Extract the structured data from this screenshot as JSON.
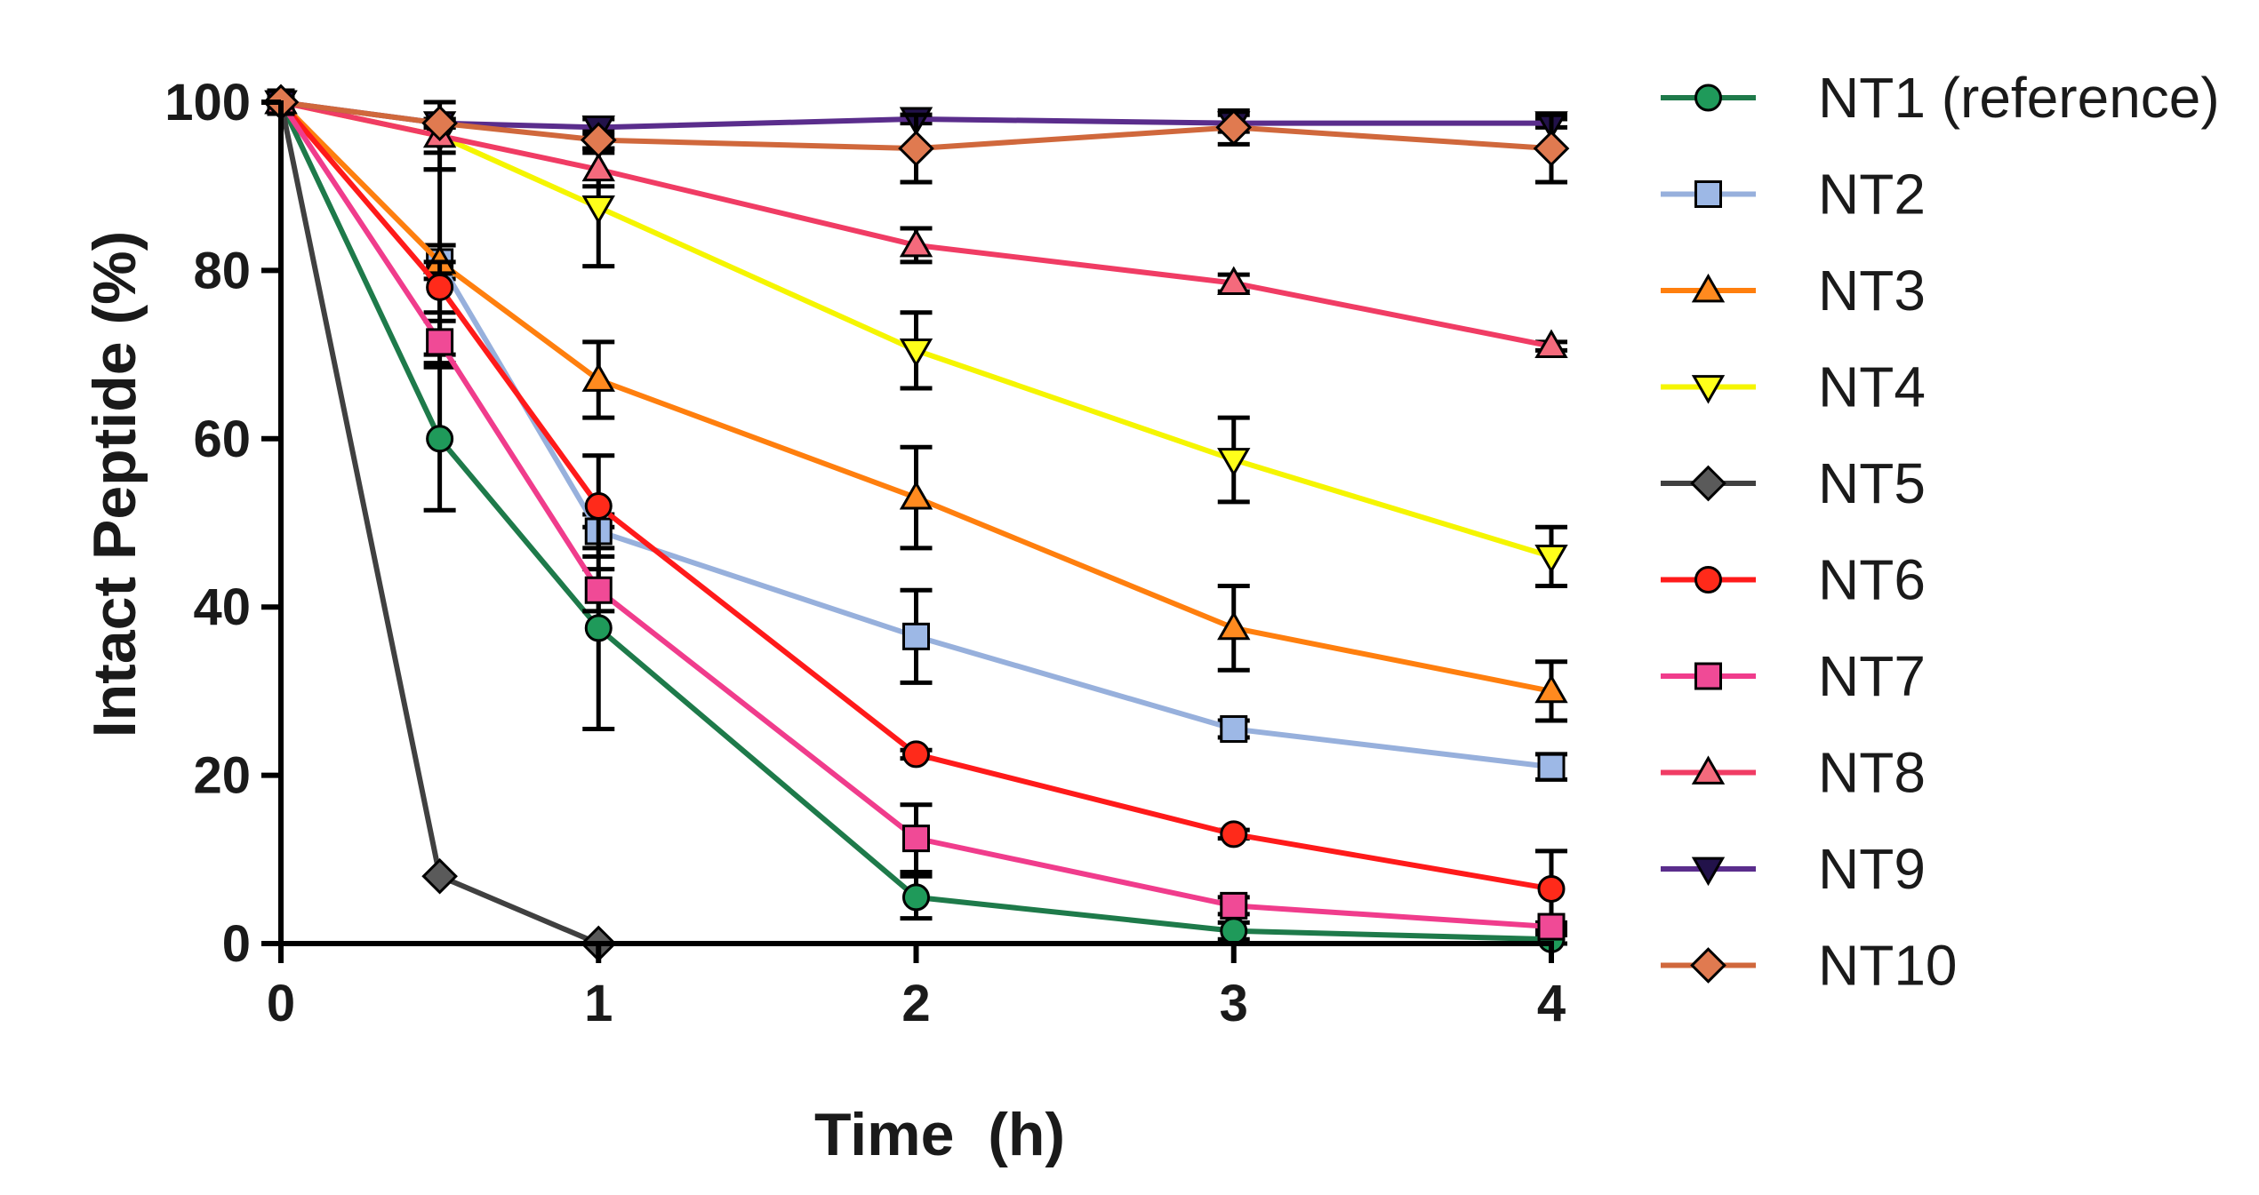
{
  "chart_data": {
    "type": "line",
    "title": "",
    "xlabel": "Time  (h)",
    "ylabel": "Intact Peptide (%)",
    "xlim": [
      0,
      4
    ],
    "ylim": [
      0,
      100
    ],
    "xticks": [
      0,
      1,
      2,
      3,
      4
    ],
    "yticks": [
      0,
      20,
      40,
      60,
      80,
      100
    ],
    "grid": false,
    "legend_position": "right",
    "series": [
      {
        "name": "NT1 (reference)",
        "color": "#1e7a4a",
        "marker": "circle",
        "fill": "#1f9a5a",
        "x": [
          0,
          0.5,
          1,
          2,
          3,
          4
        ],
        "y": [
          100,
          60,
          37.5,
          5.5,
          1.5,
          0.5
        ],
        "err": [
          0,
          8.5,
          12,
          2.5,
          1,
          0.5
        ]
      },
      {
        "name": "NT2",
        "color": "#97b0dc",
        "marker": "square",
        "fill": "#9db8e6",
        "x": [
          0,
          0.5,
          1,
          2,
          3,
          4
        ],
        "y": [
          100,
          81,
          49,
          36.5,
          25.5,
          21
        ],
        "err": [
          0,
          2,
          2,
          5.5,
          1,
          1.5
        ]
      },
      {
        "name": "NT3",
        "color": "#ff7f0e",
        "marker": "triangle-up",
        "fill": "#ff8a1f",
        "x": [
          0,
          0.5,
          1,
          2,
          3,
          4
        ],
        "y": [
          100,
          81,
          67,
          53,
          37.5,
          30
        ],
        "err": [
          0,
          11,
          4.5,
          6,
          5,
          3.5
        ]
      },
      {
        "name": "NT4",
        "color": "#f5f500",
        "marker": "triangle-down",
        "fill": "#ffff1a",
        "x": [
          0,
          0.5,
          1,
          2,
          3,
          4
        ],
        "y": [
          100,
          96,
          87.5,
          70.5,
          57.5,
          46
        ],
        "err": [
          0,
          4,
          7,
          4.5,
          5,
          3.5
        ]
      },
      {
        "name": "NT5",
        "color": "#404040",
        "marker": "diamond",
        "fill": "#5a5a5a",
        "x": [
          0,
          0.5,
          1
        ],
        "y": [
          100,
          8,
          0
        ],
        "err": [
          0,
          0,
          0
        ]
      },
      {
        "name": "NT6",
        "color": "#ff1a1a",
        "marker": "circle",
        "fill": "#ff2a1a",
        "x": [
          0,
          0.5,
          1,
          2,
          3,
          4
        ],
        "y": [
          100,
          78,
          52,
          22.5,
          13,
          6.5
        ],
        "err": [
          0,
          3,
          6,
          0.5,
          0.5,
          4.5
        ]
      },
      {
        "name": "NT7",
        "color": "#f03c8c",
        "marker": "square",
        "fill": "#f04a96",
        "x": [
          0,
          0.5,
          1,
          2,
          3,
          4
        ],
        "y": [
          100,
          71.5,
          42,
          12.5,
          4.5,
          2
        ],
        "err": [
          0,
          2.5,
          2.5,
          4,
          1,
          0.5
        ]
      },
      {
        "name": "NT8",
        "color": "#f03c64",
        "marker": "triangle-up",
        "fill": "#f46a7c",
        "x": [
          0,
          0.5,
          1,
          2,
          3,
          4
        ],
        "y": [
          100,
          96,
          92,
          83,
          78.5,
          71
        ],
        "err": [
          0,
          2,
          2,
          2,
          1,
          0.5
        ]
      },
      {
        "name": "NT9",
        "color": "#5a2d8c",
        "marker": "triangle-down",
        "fill": "#22124a",
        "x": [
          0,
          0.5,
          1,
          2,
          3,
          4
        ],
        "y": [
          100,
          97.5,
          97,
          98,
          97.5,
          97.5
        ],
        "err": [
          0,
          0.5,
          1,
          0.5,
          1,
          0.5
        ]
      },
      {
        "name": "NT10",
        "color": "#d0683c",
        "marker": "diamond",
        "fill": "#e07a50",
        "x": [
          0,
          0.5,
          1,
          2,
          3,
          4
        ],
        "y": [
          100,
          97.5,
          95.5,
          94.5,
          97,
          94.5
        ],
        "err": [
          0,
          0.5,
          1,
          4,
          2,
          4
        ]
      }
    ]
  }
}
